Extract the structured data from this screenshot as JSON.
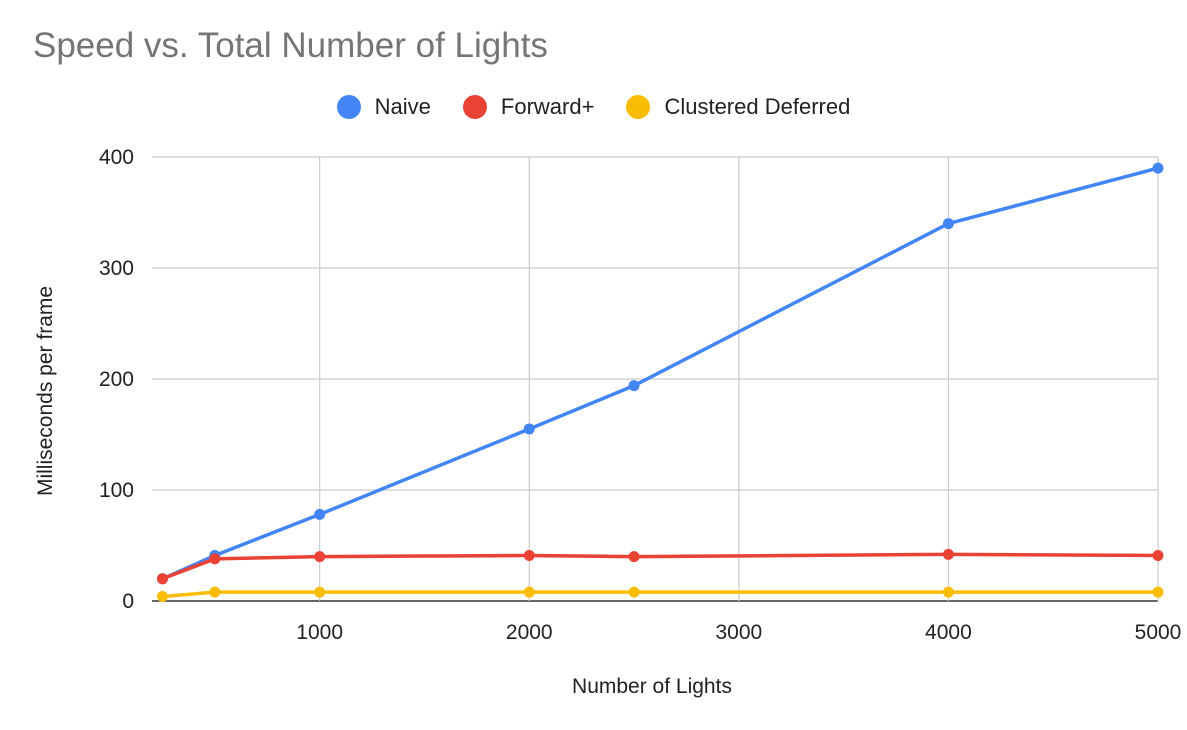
{
  "chart_data": {
    "type": "line",
    "title": "Speed vs. Total Number of Lights",
    "xlabel": "Number of Lights",
    "ylabel": "Milliseconds per frame",
    "xlim": [
      200,
      5000
    ],
    "ylim": [
      0,
      400
    ],
    "xticks": [
      1000,
      2000,
      3000,
      4000,
      5000
    ],
    "yticks": [
      0,
      100,
      200,
      300,
      400
    ],
    "grid": true,
    "legend_position": "top",
    "x": [
      250,
      500,
      1000,
      2000,
      2500,
      4000,
      5000
    ],
    "series": [
      {
        "name": "Naive",
        "color": "#4285F4",
        "values": [
          20,
          41,
          78,
          155,
          194,
          340,
          390
        ]
      },
      {
        "name": "Forward+",
        "color": "#EA4335",
        "values": [
          20,
          38,
          40,
          41,
          40,
          42,
          41
        ]
      },
      {
        "name": "Clustered Deferred",
        "color": "#FBBC04",
        "values": [
          4,
          8,
          8,
          8,
          8,
          8,
          8
        ]
      }
    ]
  }
}
